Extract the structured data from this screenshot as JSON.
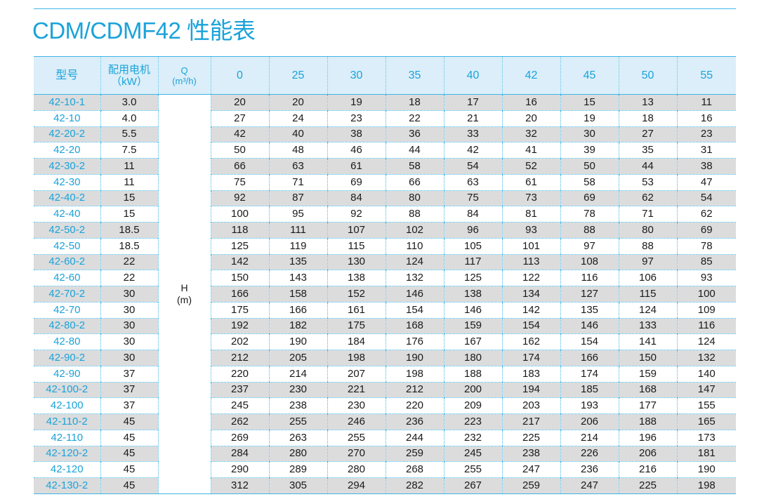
{
  "title": "CDM/CDMF42 性能表",
  "table": {
    "header": {
      "model": "型号",
      "motor_line1": "配用电机",
      "motor_line2": "（kW）",
      "q_line1": "Q",
      "q_line2": "(m³/h)",
      "flows": [
        "0",
        "25",
        "30",
        "35",
        "40",
        "42",
        "45",
        "50",
        "55"
      ]
    },
    "h_label_line1": "H",
    "h_label_line2": "(m)",
    "rows": [
      {
        "model": "42-10-1",
        "power": "3.0",
        "heads": [
          "20",
          "20",
          "19",
          "18",
          "17",
          "16",
          "15",
          "13",
          "11"
        ]
      },
      {
        "model": "42-10",
        "power": "4.0",
        "heads": [
          "27",
          "24",
          "23",
          "22",
          "21",
          "20",
          "19",
          "18",
          "16"
        ]
      },
      {
        "model": "42-20-2",
        "power": "5.5",
        "heads": [
          "42",
          "40",
          "38",
          "36",
          "33",
          "32",
          "30",
          "27",
          "23"
        ]
      },
      {
        "model": "42-20",
        "power": "7.5",
        "heads": [
          "50",
          "48",
          "46",
          "44",
          "42",
          "41",
          "39",
          "35",
          "31"
        ]
      },
      {
        "model": "42-30-2",
        "power": "11",
        "heads": [
          "66",
          "63",
          "61",
          "58",
          "54",
          "52",
          "50",
          "44",
          "38"
        ]
      },
      {
        "model": "42-30",
        "power": "11",
        "heads": [
          "75",
          "71",
          "69",
          "66",
          "63",
          "61",
          "58",
          "53",
          "47"
        ]
      },
      {
        "model": "42-40-2",
        "power": "15",
        "heads": [
          "92",
          "87",
          "84",
          "80",
          "75",
          "73",
          "69",
          "62",
          "54"
        ]
      },
      {
        "model": "42-40",
        "power": "15",
        "heads": [
          "100",
          "95",
          "92",
          "88",
          "84",
          "81",
          "78",
          "71",
          "62"
        ]
      },
      {
        "model": "42-50-2",
        "power": "18.5",
        "heads": [
          "118",
          "111",
          "107",
          "102",
          "96",
          "93",
          "88",
          "80",
          "69"
        ]
      },
      {
        "model": "42-50",
        "power": "18.5",
        "heads": [
          "125",
          "119",
          "115",
          "110",
          "105",
          "101",
          "97",
          "88",
          "78"
        ]
      },
      {
        "model": "42-60-2",
        "power": "22",
        "heads": [
          "142",
          "135",
          "130",
          "124",
          "117",
          "113",
          "108",
          "97",
          "85"
        ]
      },
      {
        "model": "42-60",
        "power": "22",
        "heads": [
          "150",
          "143",
          "138",
          "132",
          "125",
          "122",
          "116",
          "106",
          "93"
        ]
      },
      {
        "model": "42-70-2",
        "power": "30",
        "heads": [
          "166",
          "158",
          "152",
          "146",
          "138",
          "134",
          "127",
          "115",
          "100"
        ]
      },
      {
        "model": "42-70",
        "power": "30",
        "heads": [
          "175",
          "166",
          "161",
          "154",
          "146",
          "142",
          "135",
          "124",
          "109"
        ]
      },
      {
        "model": "42-80-2",
        "power": "30",
        "heads": [
          "192",
          "182",
          "175",
          "168",
          "159",
          "154",
          "146",
          "133",
          "116"
        ]
      },
      {
        "model": "42-80",
        "power": "30",
        "heads": [
          "202",
          "190",
          "184",
          "176",
          "167",
          "162",
          "154",
          "141",
          "124"
        ]
      },
      {
        "model": "42-90-2",
        "power": "30",
        "heads": [
          "212",
          "205",
          "198",
          "190",
          "180",
          "174",
          "166",
          "150",
          "132"
        ]
      },
      {
        "model": "42-90",
        "power": "37",
        "heads": [
          "220",
          "214",
          "207",
          "198",
          "188",
          "183",
          "174",
          "159",
          "140"
        ]
      },
      {
        "model": "42-100-2",
        "power": "37",
        "heads": [
          "237",
          "230",
          "221",
          "212",
          "200",
          "194",
          "185",
          "168",
          "147"
        ]
      },
      {
        "model": "42-100",
        "power": "37",
        "heads": [
          "245",
          "238",
          "230",
          "220",
          "209",
          "203",
          "193",
          "177",
          "155"
        ]
      },
      {
        "model": "42-110-2",
        "power": "45",
        "heads": [
          "262",
          "255",
          "246",
          "236",
          "223",
          "217",
          "206",
          "188",
          "165"
        ]
      },
      {
        "model": "42-110",
        "power": "45",
        "heads": [
          "269",
          "263",
          "255",
          "244",
          "232",
          "225",
          "214",
          "196",
          "173"
        ]
      },
      {
        "model": "42-120-2",
        "power": "45",
        "heads": [
          "284",
          "280",
          "270",
          "259",
          "245",
          "238",
          "226",
          "206",
          "181"
        ]
      },
      {
        "model": "42-120",
        "power": "45",
        "heads": [
          "290",
          "289",
          "280",
          "268",
          "255",
          "247",
          "236",
          "216",
          "190"
        ]
      },
      {
        "model": "42-130-2",
        "power": "45",
        "heads": [
          "312",
          "305",
          "294",
          "282",
          "267",
          "259",
          "247",
          "225",
          "198"
        ]
      }
    ]
  }
}
